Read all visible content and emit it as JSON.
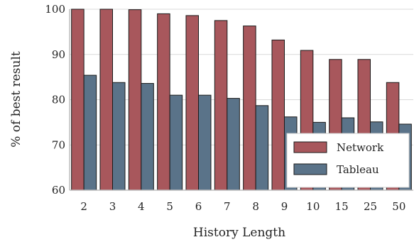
{
  "chart_data": {
    "type": "bar",
    "xlabel": "History Length",
    "ylabel": "% of best result",
    "ylim": [
      60,
      100
    ],
    "yticks": [
      60,
      70,
      80,
      90,
      100
    ],
    "grid": true,
    "legend_position": "bottom-right",
    "categories": [
      "2",
      "3",
      "4",
      "5",
      "6",
      "7",
      "8",
      "9",
      "10",
      "15",
      "25",
      "50"
    ],
    "series": [
      {
        "name": "Network",
        "color": "#a8575c",
        "values": [
          100,
          100,
          99.9,
          99.0,
          98.6,
          97.5,
          96.3,
          93.2,
          90.9,
          88.9,
          88.9,
          83.8
        ]
      },
      {
        "name": "Tableau",
        "color": "#5a7389",
        "values": [
          85.4,
          83.8,
          83.6,
          81.0,
          81.0,
          80.3,
          78.7,
          76.2,
          75.0,
          76.0,
          75.1,
          74.6
        ]
      }
    ]
  }
}
